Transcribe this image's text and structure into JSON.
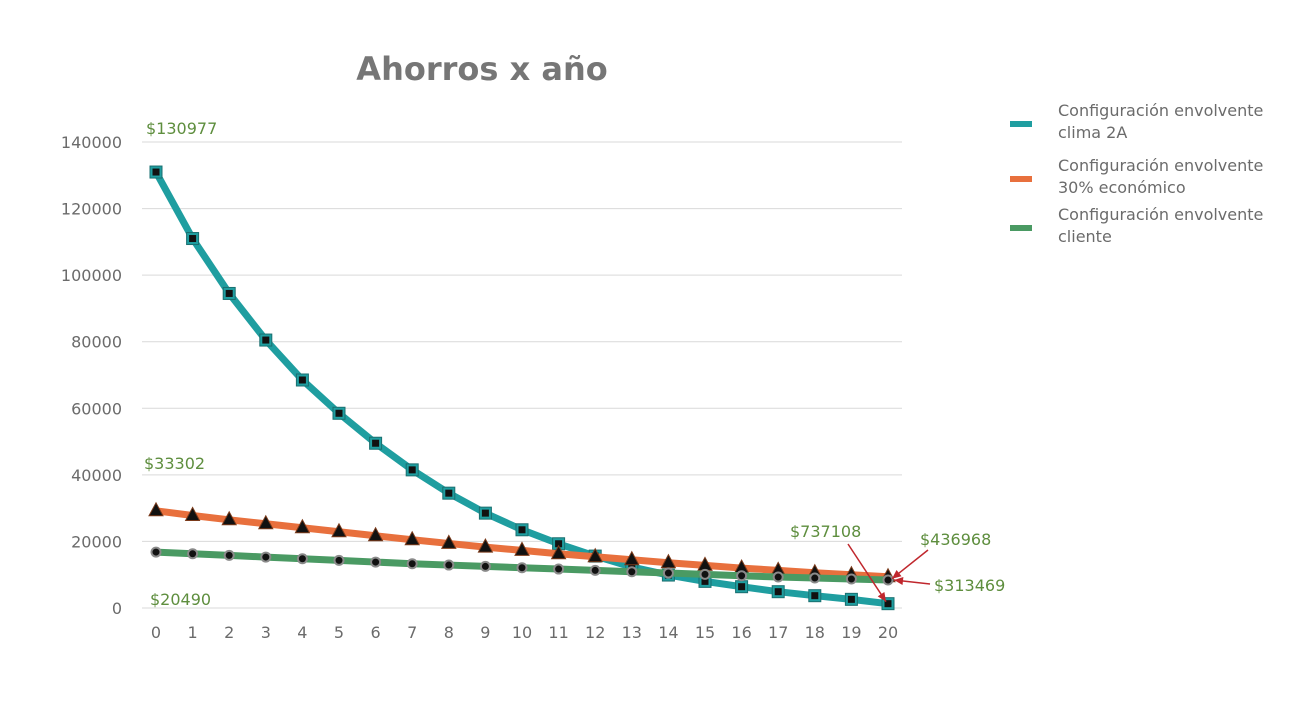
{
  "chart_data": {
    "type": "line",
    "title": "Ahorros x año",
    "xlabel": "",
    "ylabel": "",
    "x": [
      0,
      1,
      2,
      3,
      4,
      5,
      6,
      7,
      8,
      9,
      10,
      11,
      12,
      13,
      14,
      15,
      16,
      17,
      18,
      19,
      20
    ],
    "yticks": [
      0,
      20000,
      40000,
      60000,
      80000,
      100000,
      120000,
      140000
    ],
    "grid": true,
    "legend_position": "top-right",
    "series": [
      {
        "name": "Configuración envolvente clima 2A",
        "color": "#1f9ea0",
        "marker": "square",
        "values": [
          130977,
          111000,
          94500,
          80500,
          68500,
          58500,
          49500,
          41500,
          34500,
          28500,
          23500,
          19300,
          15600,
          12300,
          9900,
          8000,
          6400,
          4900,
          3700,
          2600,
          1300
        ]
      },
      {
        "name": "Configuración envolvente 30% económico",
        "color": "#e8703d",
        "marker": "triangle",
        "values": [
          29200,
          27800,
          26500,
          25300,
          24100,
          22900,
          21700,
          20500,
          19400,
          18300,
          17300,
          16300,
          15400,
          14500,
          13600,
          12800,
          12000,
          11300,
          10600,
          10000,
          9400
        ]
      },
      {
        "name": "Configuración envolvente cliente",
        "color": "#4a9a63",
        "marker": "circle",
        "values": [
          16800,
          16300,
          15800,
          15300,
          14800,
          14300,
          13800,
          13300,
          12900,
          12500,
          12100,
          11700,
          11300,
          10900,
          10500,
          10100,
          9700,
          9300,
          9000,
          8700,
          8400
        ]
      }
    ],
    "annotations": [
      {
        "text": "$130977"
      },
      {
        "text": "$33302"
      },
      {
        "text": "$20490"
      },
      {
        "text": "$737108"
      },
      {
        "text": "$436968"
      },
      {
        "text": "$313469"
      }
    ]
  }
}
